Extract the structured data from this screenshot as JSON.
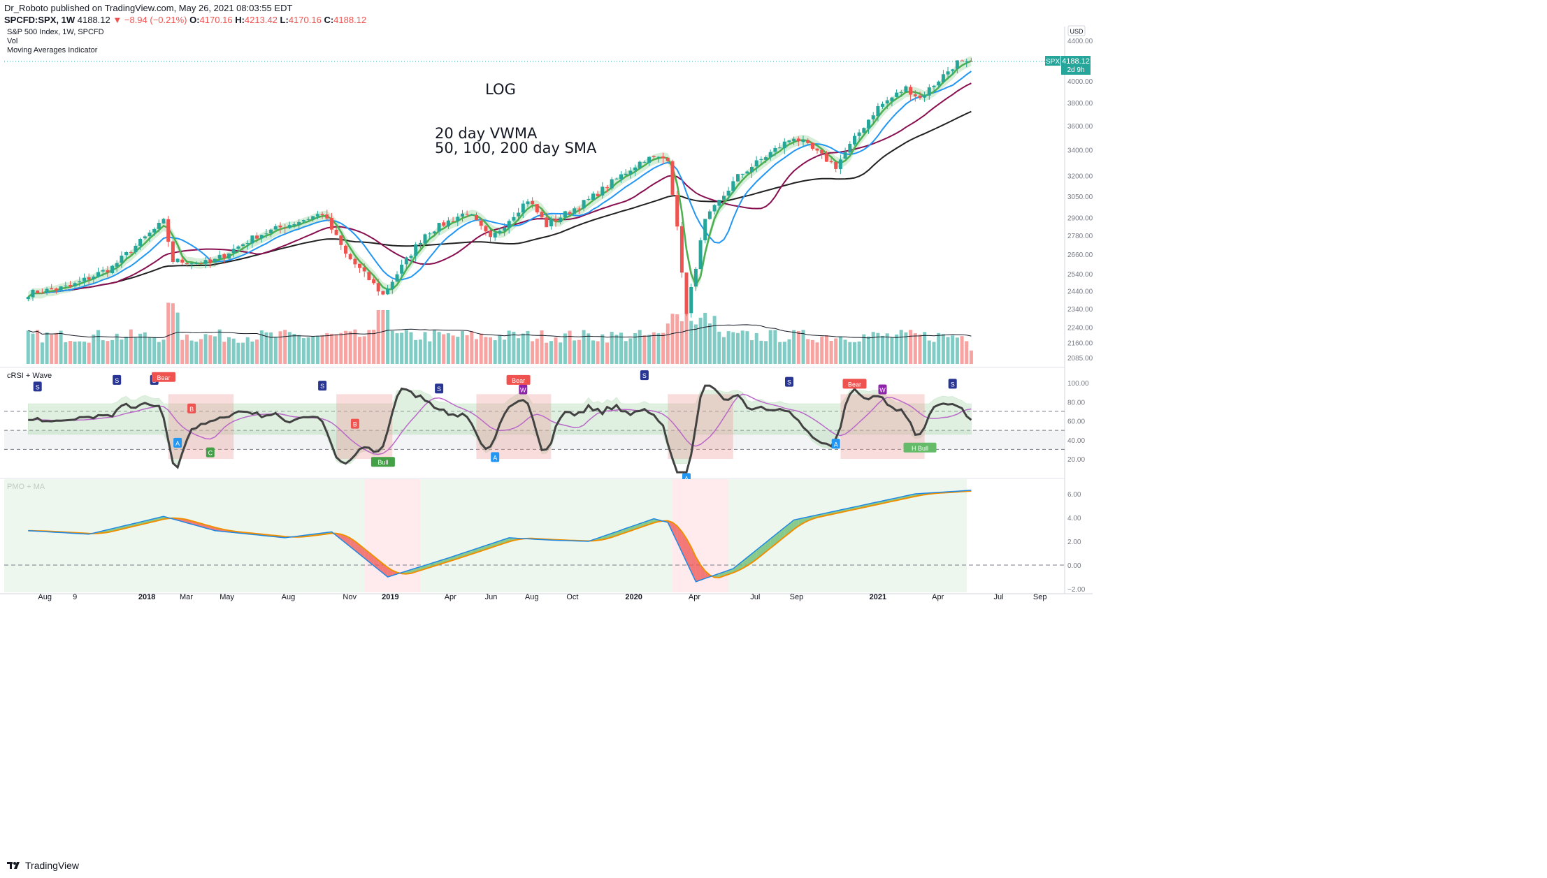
{
  "header": {
    "line1": "Dr_Roboto published on TradingView.com, May 26, 2021 08:03:55 EDT",
    "symbol": "SPCFD:SPX, 1W",
    "last": "4188.12",
    "change": "▼ −8.94 (−0.21%)",
    "o_label": "O:",
    "o": "4170.16",
    "h_label": "H:",
    "h": "4213.42",
    "l_label": "L:",
    "l": "4170.16",
    "c_label": "C:",
    "c": "4188.12"
  },
  "footer": {
    "brand": "TradingView"
  },
  "colors": {
    "up": "#26a69a",
    "down": "#ef5350",
    "vwma": "#4caf50",
    "sma50": "#2196f3",
    "sma100": "#880e4f",
    "sma200": "#212121",
    "price_tag": "#26a69a"
  },
  "chart_data": [
    {
      "type": "candlestick",
      "legend": [
        "S&P 500 Index, 1W, SPCFD",
        "Vol",
        "Moving Averages Indicator"
      ],
      "annotations": [
        "LOG",
        "20 day VWMA",
        "50, 100, 200 day SMA"
      ],
      "y_scale": "log",
      "y_ticks": [
        "4400.00",
        "4000.00",
        "3800.00",
        "3600.00",
        "3400.00",
        "3200.00",
        "3050.00",
        "2900.00",
        "2780.00",
        "2660.00",
        "2540.00",
        "2440.00",
        "2340.00",
        "2240.00",
        "2160.00",
        "2085.00"
      ],
      "currency": "USD",
      "last_price_label": "SPX",
      "last_price": "4188.12",
      "countdown": "2d 9h",
      "x_ticks": [
        "Aug",
        "9",
        "2018",
        "Mar",
        "May",
        "Aug",
        "Nov",
        "2019",
        "Apr",
        "Jun",
        "Aug",
        "Oct",
        "2020",
        "Apr",
        "Jul",
        "Sep",
        "2021",
        "Apr",
        "Jul",
        "Sep"
      ],
      "close_anchors": [
        [
          "2017-07-07",
          2425
        ],
        [
          "2017-09-08",
          2465
        ],
        [
          "2017-11-10",
          2580
        ],
        [
          "2018-01-26",
          2872
        ],
        [
          "2018-02-09",
          2619
        ],
        [
          "2018-04-06",
          2604
        ],
        [
          "2018-06-15",
          2779
        ],
        [
          "2018-09-21",
          2929
        ],
        [
          "2018-10-26",
          2658
        ],
        [
          "2018-12-21",
          2416
        ],
        [
          "2019-02-22",
          2792
        ],
        [
          "2019-04-26",
          2939
        ],
        [
          "2019-05-31",
          2752
        ],
        [
          "2019-07-26",
          3025
        ],
        [
          "2019-08-23",
          2847
        ],
        [
          "2019-10-25",
          3022
        ],
        [
          "2020-01-17",
          3329
        ],
        [
          "2020-02-21",
          3337
        ],
        [
          "2020-03-20",
          2304
        ],
        [
          "2020-04-17",
          2874
        ],
        [
          "2020-06-05",
          3193
        ],
        [
          "2020-08-28",
          3508
        ],
        [
          "2020-10-30",
          3270
        ],
        [
          "2020-12-31",
          3756
        ],
        [
          "2021-02-12",
          3934
        ],
        [
          "2021-03-05",
          3841
        ],
        [
          "2021-04-30",
          4181
        ],
        [
          "2021-05-21",
          4155
        ],
        [
          "2021-05-26",
          4188
        ]
      ],
      "volume_ma_visible": true
    },
    {
      "type": "line",
      "title": "cRSI + Wave",
      "y_ticks": [
        "100.00",
        "80.00",
        "60.00",
        "40.00",
        "20.00"
      ],
      "levels": [
        70,
        50,
        30
      ],
      "labels": [
        "S",
        "Bear",
        "Bull",
        "A",
        "B",
        "C",
        "W",
        "H Bull"
      ]
    },
    {
      "type": "area",
      "title": "PMO + MA",
      "y_ticks": [
        "6.00",
        "4.00",
        "2.00",
        "0.00",
        "−2.00"
      ],
      "pmo_anchors": [
        [
          "2017-07-07",
          2.9
        ],
        [
          "2017-10-06",
          2.6
        ],
        [
          "2018-01-26",
          4.1
        ],
        [
          "2018-04-13",
          2.9
        ],
        [
          "2018-07-27",
          2.3
        ],
        [
          "2018-10-05",
          2.8
        ],
        [
          "2018-12-28",
          -1.0
        ],
        [
          "2019-03-29",
          0.6
        ],
        [
          "2019-06-28",
          2.3
        ],
        [
          "2019-08-30",
          2.1
        ],
        [
          "2019-10-25",
          2.0
        ],
        [
          "2020-01-31",
          3.9
        ],
        [
          "2020-02-21",
          3.6
        ],
        [
          "2020-04-03",
          -1.4
        ],
        [
          "2020-05-29",
          -0.3
        ],
        [
          "2020-08-28",
          3.8
        ],
        [
          "2020-11-27",
          4.9
        ],
        [
          "2021-02-26",
          6.0
        ],
        [
          "2021-05-21",
          6.3
        ]
      ]
    }
  ]
}
